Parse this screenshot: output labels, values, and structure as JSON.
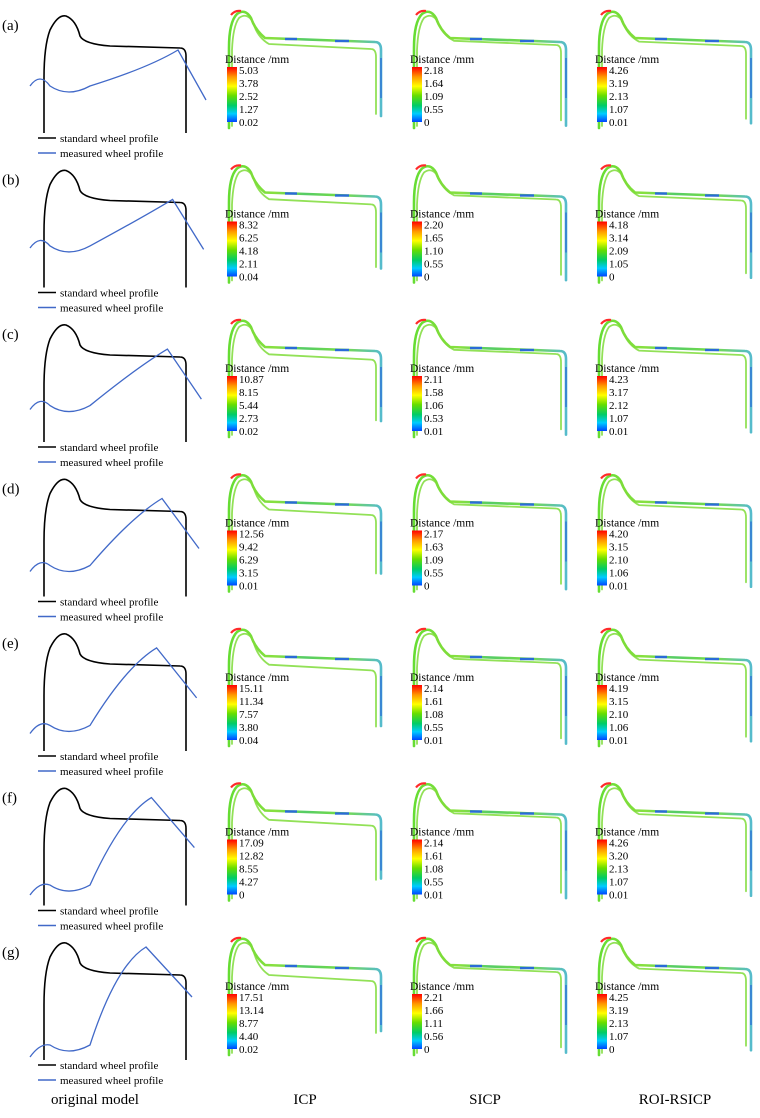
{
  "legend": {
    "standard": "standard wheel profile",
    "measured": "measured wheel profile"
  },
  "colorbar_title": "Distance /mm",
  "columns": [
    "original model",
    "ICP",
    "SICP",
    "ROI-RSICP"
  ],
  "colors": {
    "standard_line": "#000000",
    "measured_line": "#4169c8",
    "bar_stops": [
      "#ff0000",
      "#ff9900",
      "#ffff00",
      "#66dd00",
      "#00cc66",
      "#00ccff",
      "#0044ff"
    ]
  },
  "rows": [
    {
      "label": "(a)",
      "shift": 0.0,
      "icp": [
        "5.03",
        "3.78",
        "2.52",
        "1.27",
        "0.02"
      ],
      "sicp": [
        "2.18",
        "1.64",
        "1.09",
        "0.55",
        "0"
      ],
      "roi": [
        "4.26",
        "3.19",
        "2.13",
        "1.07",
        "0.01"
      ]
    },
    {
      "label": "(b)",
      "shift": 0.17,
      "icp": [
        "8.32",
        "6.25",
        "4.18",
        "2.11",
        "0.04"
      ],
      "sicp": [
        "2.20",
        "1.65",
        "1.10",
        "0.55",
        "0"
      ],
      "roi": [
        "4.18",
        "3.14",
        "2.09",
        "1.05",
        "0"
      ]
    },
    {
      "label": "(c)",
      "shift": 0.33,
      "icp": [
        "10.87",
        "8.15",
        "5.44",
        "2.73",
        "0.02"
      ],
      "sicp": [
        "2.11",
        "1.58",
        "1.06",
        "0.53",
        "0.01"
      ],
      "roi": [
        "4.23",
        "3.17",
        "2.12",
        "1.07",
        "0.01"
      ]
    },
    {
      "label": "(d)",
      "shift": 0.5,
      "icp": [
        "12.56",
        "9.42",
        "6.29",
        "3.15",
        "0.01"
      ],
      "sicp": [
        "2.17",
        "1.63",
        "1.09",
        "0.55",
        "0"
      ],
      "roi": [
        "4.20",
        "3.15",
        "2.10",
        "1.06",
        "0.01"
      ]
    },
    {
      "label": "(e)",
      "shift": 0.67,
      "icp": [
        "15.11",
        "11.34",
        "7.57",
        "3.80",
        "0.04"
      ],
      "sicp": [
        "2.14",
        "1.61",
        "1.08",
        "0.55",
        "0.01"
      ],
      "roi": [
        "4.19",
        "3.15",
        "2.10",
        "1.06",
        "0.01"
      ]
    },
    {
      "label": "(f)",
      "shift": 0.83,
      "icp": [
        "17.09",
        "12.82",
        "8.55",
        "4.27",
        "0"
      ],
      "sicp": [
        "2.14",
        "1.61",
        "1.08",
        "0.55",
        "0.01"
      ],
      "roi": [
        "4.26",
        "3.20",
        "2.13",
        "1.07",
        "0.01"
      ]
    },
    {
      "label": "(g)",
      "shift": 1.0,
      "icp": [
        "17.51",
        "13.14",
        "8.77",
        "4.40",
        "0.02"
      ],
      "sicp": [
        "2.21",
        "1.66",
        "1.11",
        "0.56",
        "0"
      ],
      "roi": [
        "4.25",
        "3.19",
        "2.13",
        "1.07",
        "0"
      ]
    }
  ]
}
